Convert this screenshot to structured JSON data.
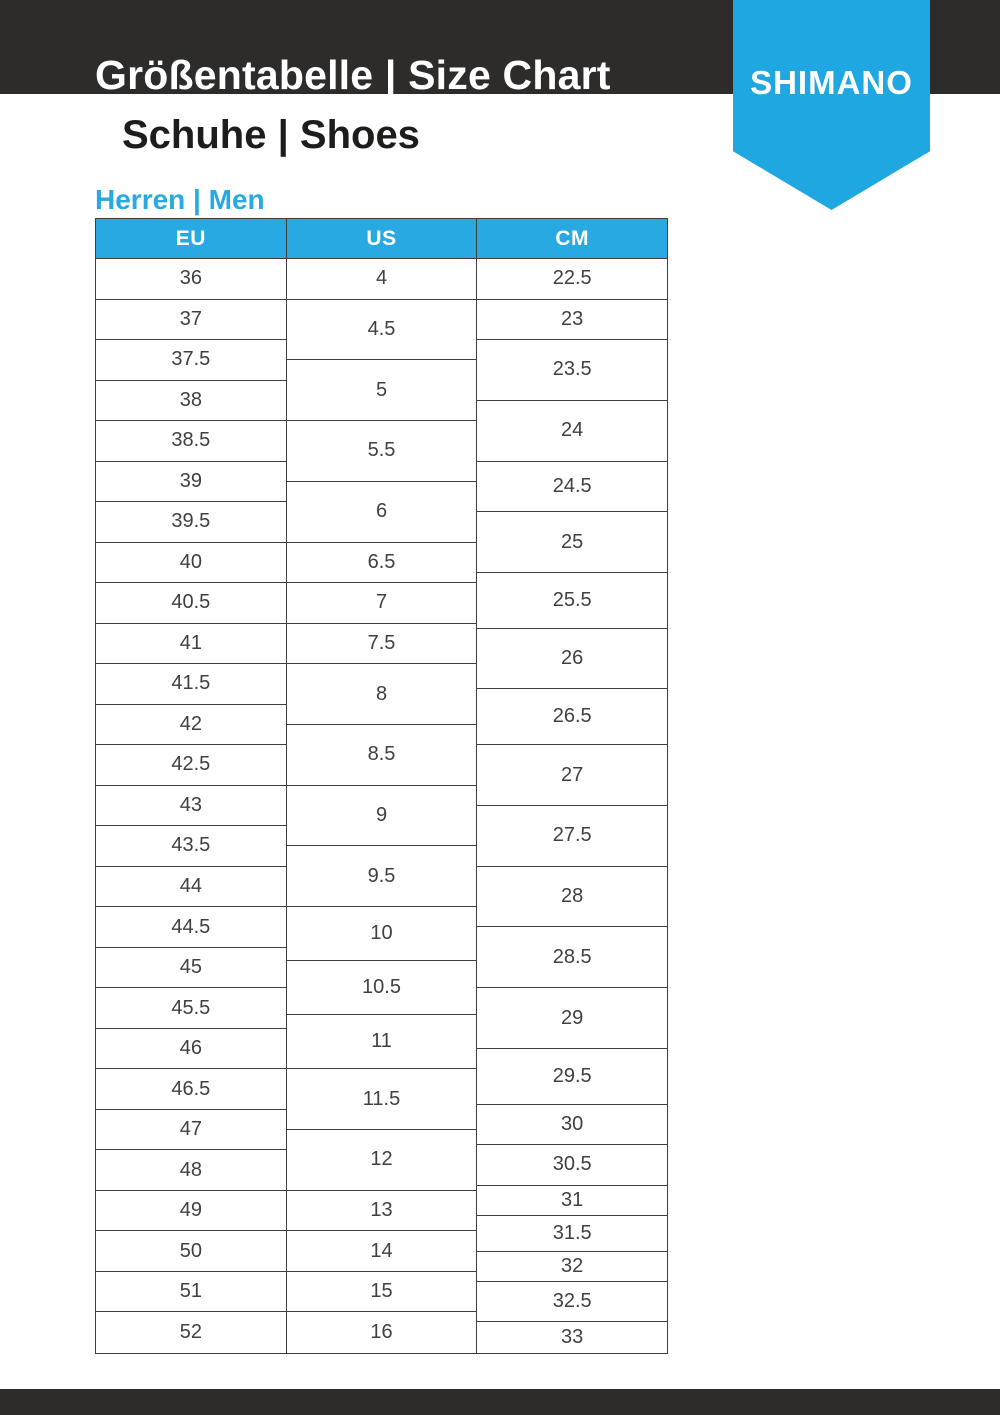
{
  "header": {
    "title": "Größentabelle | Size Chart",
    "subtitle": "Schuhe | Shoes",
    "brand": "SHIMANO"
  },
  "section": {
    "label": "Herren | Men"
  },
  "colors": {
    "bar_dark": "#2d2c2b",
    "brand_blue": "#1ea7e0",
    "header_blue": "#29a9e1",
    "line": "#3f3e3d",
    "text_dark": "#1d1d1b",
    "cell_text": "#404040"
  },
  "size_table": {
    "columns": [
      {
        "key": "eu",
        "label": "EU",
        "cells": [
          {
            "v": "36",
            "span": 2
          },
          {
            "v": "37",
            "span": 2
          },
          {
            "v": "37.5",
            "span": 2
          },
          {
            "v": "38",
            "span": 2
          },
          {
            "v": "38.5",
            "span": 2
          },
          {
            "v": "39",
            "span": 2
          },
          {
            "v": "39.5",
            "span": 2
          },
          {
            "v": "40",
            "span": 2
          },
          {
            "v": "40.5",
            "span": 2
          },
          {
            "v": "41",
            "span": 2
          },
          {
            "v": "41.5",
            "span": 2
          },
          {
            "v": "42",
            "span": 2
          },
          {
            "v": "42.5",
            "span": 2
          },
          {
            "v": "43",
            "span": 2
          },
          {
            "v": "43.5",
            "span": 2
          },
          {
            "v": "44",
            "span": 2
          },
          {
            "v": "44.5",
            "span": 2
          },
          {
            "v": "45",
            "span": 2
          },
          {
            "v": "45.5",
            "span": 2
          },
          {
            "v": "46",
            "span": 2
          },
          {
            "v": "46.5",
            "span": 2
          },
          {
            "v": "47",
            "span": 2
          },
          {
            "v": "48",
            "span": 2
          },
          {
            "v": "49",
            "span": 2
          },
          {
            "v": "50",
            "span": 2
          },
          {
            "v": "51",
            "span": 2
          },
          {
            "v": "52",
            "span": 2
          }
        ]
      },
      {
        "key": "us",
        "label": "US",
        "cells": [
          {
            "v": "4",
            "span": 2
          },
          {
            "v": "4.5",
            "span": 3
          },
          {
            "v": "5",
            "span": 3
          },
          {
            "v": "5.5",
            "span": 3
          },
          {
            "v": "6",
            "span": 3
          },
          {
            "v": "6.5",
            "span": 2
          },
          {
            "v": "7",
            "span": 2
          },
          {
            "v": "7.5",
            "span": 2
          },
          {
            "v": "8",
            "span": 3
          },
          {
            "v": "8.5",
            "span": 3
          },
          {
            "v": "9",
            "span": 3
          },
          {
            "v": "9.5",
            "span": 3
          },
          {
            "v": "10",
            "span": 2.67
          },
          {
            "v": "10.5",
            "span": 2.66
          },
          {
            "v": "11",
            "span": 2.67
          },
          {
            "v": "11.5",
            "span": 3
          },
          {
            "v": "12",
            "span": 3
          },
          {
            "v": "13",
            "span": 2
          },
          {
            "v": "14",
            "span": 2
          },
          {
            "v": "15",
            "span": 2
          },
          {
            "v": "16",
            "span": 2
          }
        ]
      },
      {
        "key": "cm",
        "label": "CM",
        "cells": [
          {
            "v": "22.5",
            "span": 2
          },
          {
            "v": "23",
            "span": 2
          },
          {
            "v": "23.5",
            "span": 3
          },
          {
            "v": "24",
            "span": 3
          },
          {
            "v": "24.5",
            "span": 2.5
          },
          {
            "v": "25",
            "span": 3
          },
          {
            "v": "25.5",
            "span": 2.75
          },
          {
            "v": "26",
            "span": 3
          },
          {
            "v": "26.5",
            "span": 2.75
          },
          {
            "v": "27",
            "span": 3
          },
          {
            "v": "27.5",
            "span": 3
          },
          {
            "v": "28",
            "span": 3
          },
          {
            "v": "28.5",
            "span": 3
          },
          {
            "v": "29",
            "span": 3
          },
          {
            "v": "29.5",
            "span": 2.75
          },
          {
            "v": "30",
            "span": 2
          },
          {
            "v": "30.5",
            "span": 2
          },
          {
            "v": "31",
            "span": 1.5
          },
          {
            "v": "31.5",
            "span": 1.75
          },
          {
            "v": "32",
            "span": 1.5
          },
          {
            "v": "32.5",
            "span": 2
          },
          {
            "v": "33",
            "span": 1.5
          }
        ]
      }
    ]
  }
}
